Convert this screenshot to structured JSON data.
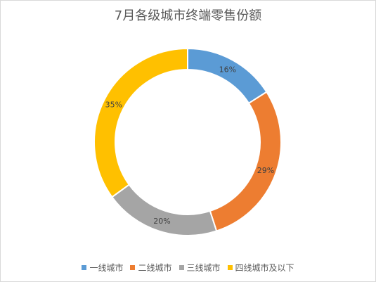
{
  "chart_data": {
    "type": "pie",
    "subtype": "donut",
    "title": "7月各级城市终端零售份额",
    "categories": [
      "一线城市",
      "二线城市",
      "三线城市",
      "四线城市及以下"
    ],
    "values": [
      16,
      29,
      20,
      35
    ],
    "labels": [
      "16%",
      "29%",
      "20%",
      "35%"
    ],
    "colors": [
      "#5b9bd5",
      "#ed7d31",
      "#a5a5a5",
      "#ffc000"
    ],
    "legend_position": "bottom"
  }
}
